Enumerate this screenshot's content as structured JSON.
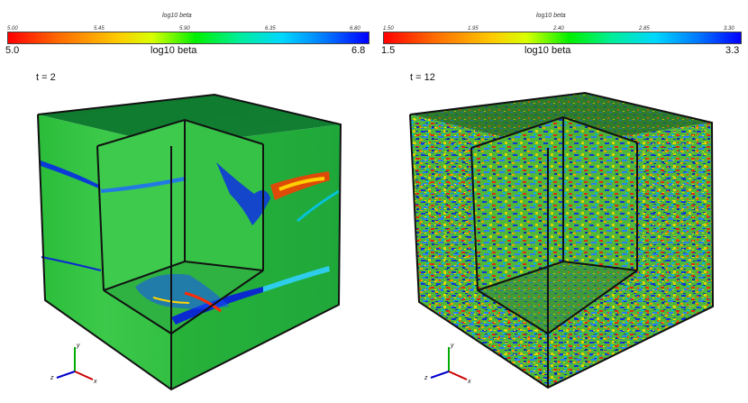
{
  "panels": [
    {
      "colorbar": {
        "title": "log10 beta",
        "ticks": [
          "5.00",
          "5.45",
          "5.90",
          "6.35",
          "6.80"
        ],
        "min_label": "5.0",
        "max_label": "6.8",
        "label": "log10 beta"
      },
      "time_label": "t = 2",
      "axes": {
        "x": "x",
        "y": "y",
        "z": "z"
      }
    },
    {
      "colorbar": {
        "title": "log10 beta",
        "ticks": [
          "1.50",
          "1.95",
          "2.40",
          "2.85",
          "3.30"
        ],
        "min_label": "1.5",
        "max_label": "3.3",
        "label": "log10 beta"
      },
      "time_label": "t = 12",
      "axes": {
        "x": "x",
        "y": "y",
        "z": "z"
      }
    }
  ],
  "colors": {
    "colormap": [
      "#ff0000",
      "#ff6a00",
      "#ffc800",
      "#d9ff00",
      "#00f000",
      "#00ee9a",
      "#00d8ff",
      "#0078ff",
      "#0000ff"
    ],
    "axis_x": "#cc0000",
    "axis_y": "#00aa00",
    "axis_z": "#0000cc"
  }
}
